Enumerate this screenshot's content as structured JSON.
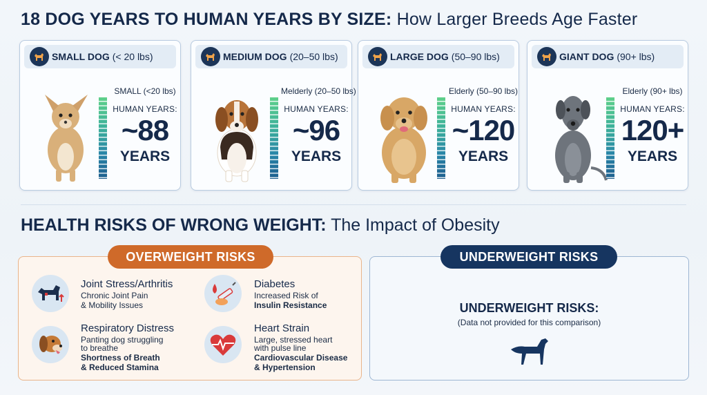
{
  "header": {
    "title_bold": "18 DOG YEARS TO HUMAN YEARS BY SIZE:",
    "title_rest": " How Larger Breeds Age Faster"
  },
  "cards": [
    {
      "size_label": "SMALL DOG",
      "range": "(< 20 lbs)",
      "stage": "SMALL (<20 lbs)",
      "human_years_label": "HUMAN YEARS:",
      "value": "~88",
      "unit": "YEARS",
      "coat_color": "#d9b07a"
    },
    {
      "size_label": "MEDIUM DOG",
      "range": "(20–50 lbs)",
      "stage": "Melderly (20–50 lbs)",
      "human_years_label": "HUMAN YEARS:",
      "value": "~96",
      "unit": "YEARS",
      "coat_color": "#b8743a"
    },
    {
      "size_label": "LARGE DOG",
      "range": "(50–90 lbs)",
      "stage": "Elderly (50–90 lbs)",
      "human_years_label": "HUMAN YEARS:",
      "value": "~120",
      "unit": "YEARS",
      "coat_color": "#d8a766"
    },
    {
      "size_label": "GIANT DOG",
      "range": "(90+ lbs)",
      "stage": "Elderly (90+ lbs)",
      "human_years_label": "HUMAN YEARS:",
      "value": "120+",
      "unit": "YEARS",
      "coat_color": "#6e747c"
    }
  ],
  "health": {
    "title_bold": "HEALTH RISKS OF WRONG WEIGHT:",
    "title_rest": " The Impact of Obesity",
    "overweight_label": "OVERWEIGHT RISKS",
    "underweight_label": "UNDERWEIGHT RISKS",
    "overweight_items": [
      {
        "title": "Joint Stress/Arthritis",
        "lines": [
          "Chronic Joint Pain",
          "& Mobility Issues"
        ],
        "icon": "dog-joint-icon"
      },
      {
        "title": "Diabetes",
        "lines": [
          "Increased Risk of",
          "Insulin Resistance"
        ],
        "icon": "syringe-icon"
      },
      {
        "title": "Respiratory Distress",
        "lines": [
          "Panting dog struggling",
          "to breathe",
          "Shortness of Breath",
          "& Reduced Stamina"
        ],
        "icon": "panting-dog-icon"
      },
      {
        "title": "Heart Strain",
        "lines": [
          "Large, stressed heart",
          "with pulse line",
          "Cardiovascular Disease",
          "& Hypertension"
        ],
        "icon": "heart-pulse-icon"
      }
    ],
    "underweight_title": "UNDERWEIGHT RISKS:",
    "underweight_note": "(Data not provided for this comparison)"
  },
  "colors": {
    "navy": "#15294a",
    "overweight_accent": "#cf6a2a",
    "underweight_accent": "#163560"
  }
}
